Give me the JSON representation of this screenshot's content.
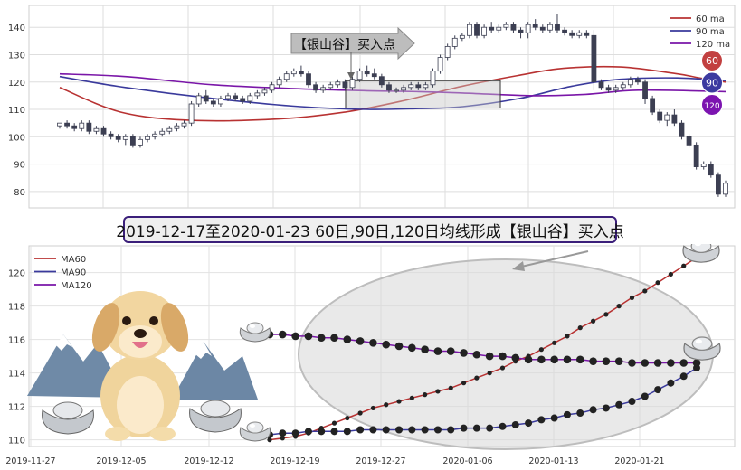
{
  "banner": "2019-12-17至2020-01-23 60日,90日,120日均线形成【银山谷】买入点",
  "colors": {
    "ma60": "#b83232",
    "ma90": "#3a3a9c",
    "ma120": "#7a16a8",
    "up": "#ffffff",
    "down": "#3c3f52"
  },
  "chart_data": [
    {
      "type": "candlestick",
      "title": "",
      "annotation": "【银山谷】买入点",
      "ylim": [
        74,
        148
      ],
      "y_ticks": [
        80,
        90,
        100,
        110,
        120,
        130,
        140
      ],
      "grid": true,
      "legend": {
        "position": "top-right",
        "entries": [
          "60 ma",
          "90 ma",
          "120 ma"
        ]
      },
      "badges": [
        "60",
        "90",
        "120"
      ],
      "candles": [
        [
          104,
          105,
          103,
          105
        ],
        [
          105,
          106,
          103,
          104
        ],
        [
          104,
          105,
          102,
          103
        ],
        [
          103,
          106,
          102,
          105
        ],
        [
          105,
          106,
          101,
          102
        ],
        [
          102,
          104,
          101,
          103
        ],
        [
          103,
          104,
          100,
          101
        ],
        [
          101,
          102,
          99,
          100
        ],
        [
          100,
          101,
          98,
          99
        ],
        [
          99,
          101,
          97,
          100
        ],
        [
          100,
          101,
          96,
          97
        ],
        [
          97,
          100,
          96,
          99
        ],
        [
          99,
          101,
          98,
          100
        ],
        [
          100,
          102,
          99,
          101
        ],
        [
          101,
          103,
          100,
          102
        ],
        [
          102,
          104,
          101,
          103
        ],
        [
          103,
          105,
          102,
          104
        ],
        [
          104,
          106,
          103,
          105
        ],
        [
          105,
          113,
          104,
          112
        ],
        [
          112,
          116,
          111,
          115
        ],
        [
          115,
          117,
          112,
          113
        ],
        [
          113,
          114,
          111,
          112
        ],
        [
          112,
          115,
          111,
          114
        ],
        [
          114,
          116,
          113,
          115
        ],
        [
          115,
          116,
          113,
          114
        ],
        [
          114,
          115,
          112,
          113
        ],
        [
          113,
          116,
          112,
          115
        ],
        [
          115,
          117,
          114,
          116
        ],
        [
          116,
          118,
          115,
          117
        ],
        [
          117,
          120,
          116,
          119
        ],
        [
          119,
          122,
          118,
          121
        ],
        [
          121,
          124,
          120,
          123
        ],
        [
          123,
          125,
          122,
          124
        ],
        [
          124,
          126,
          122,
          123
        ],
        [
          123,
          124,
          118,
          119
        ],
        [
          119,
          120,
          116,
          117
        ],
        [
          117,
          119,
          116,
          118
        ],
        [
          118,
          120,
          117,
          119
        ],
        [
          119,
          121,
          118,
          120
        ],
        [
          120,
          121,
          117,
          118
        ],
        [
          118,
          122,
          117,
          121
        ],
        [
          121,
          125,
          120,
          124
        ],
        [
          124,
          126,
          122,
          123
        ],
        [
          123,
          125,
          121,
          122
        ],
        [
          122,
          123,
          118,
          119
        ],
        [
          119,
          120,
          116,
          117
        ],
        [
          117,
          118,
          116,
          117
        ],
        [
          117,
          119,
          116,
          118
        ],
        [
          118,
          120,
          117,
          119
        ],
        [
          119,
          120,
          117,
          118
        ],
        [
          118,
          120,
          117,
          119
        ],
        [
          119,
          125,
          118,
          124
        ],
        [
          124,
          130,
          123,
          129
        ],
        [
          129,
          134,
          128,
          133
        ],
        [
          133,
          137,
          132,
          136
        ],
        [
          136,
          138,
          135,
          137
        ],
        [
          137,
          142,
          136,
          141
        ],
        [
          141,
          142,
          136,
          137
        ],
        [
          137,
          141,
          136,
          140
        ],
        [
          140,
          142,
          138,
          139
        ],
        [
          139,
          141,
          138,
          140
        ],
        [
          140,
          142,
          139,
          141
        ],
        [
          141,
          142,
          138,
          139
        ],
        [
          139,
          140,
          136,
          138
        ],
        [
          138,
          142,
          136,
          141
        ],
        [
          141,
          143,
          139,
          140
        ],
        [
          140,
          141,
          138,
          139
        ],
        [
          139,
          142,
          138,
          141
        ],
        [
          141,
          145,
          138,
          139
        ],
        [
          139,
          140,
          137,
          138
        ],
        [
          138,
          139,
          136,
          137
        ],
        [
          137,
          139,
          136,
          138
        ],
        [
          138,
          139,
          136,
          137
        ],
        [
          137,
          139,
          117,
          120
        ],
        [
          120,
          121,
          117,
          118
        ],
        [
          118,
          119,
          116,
          117
        ],
        [
          117,
          119,
          116,
          118
        ],
        [
          118,
          120,
          117,
          119
        ],
        [
          119,
          122,
          118,
          121
        ],
        [
          121,
          122,
          119,
          120
        ],
        [
          120,
          121,
          112,
          114
        ],
        [
          114,
          115,
          108,
          109
        ],
        [
          109,
          110,
          105,
          106
        ],
        [
          106,
          109,
          104,
          108
        ],
        [
          108,
          110,
          104,
          105
        ],
        [
          105,
          106,
          99,
          100
        ],
        [
          100,
          101,
          96,
          97
        ],
        [
          97,
          98,
          88,
          89
        ],
        [
          89,
          91,
          88,
          90
        ],
        [
          90,
          91,
          85,
          86
        ],
        [
          86,
          87,
          78,
          79
        ],
        [
          79,
          84,
          78,
          83
        ]
      ],
      "ma60_points": [
        [
          0,
          118
        ],
        [
          14,
          109
        ],
        [
          30,
          106
        ],
        [
          50,
          106.5
        ],
        [
          65,
          109
        ],
        [
          78,
          113
        ],
        [
          92,
          118.5
        ],
        [
          105,
          122.5
        ],
        [
          115,
          125
        ],
        [
          128,
          125.5
        ],
        [
          141,
          123
        ],
        [
          146,
          121.5
        ],
        [
          152,
          120
        ]
      ],
      "ma90_points": [
        [
          0,
          122
        ],
        [
          15,
          118
        ],
        [
          35,
          114
        ],
        [
          55,
          111
        ],
        [
          70,
          110
        ],
        [
          82,
          110.3
        ],
        [
          92,
          111
        ],
        [
          105,
          114
        ],
        [
          117,
          118.5
        ],
        [
          128,
          121
        ],
        [
          141,
          121.5
        ],
        [
          152,
          120.5
        ]
      ],
      "ma120_points": [
        [
          0,
          123
        ],
        [
          15,
          122
        ],
        [
          35,
          119
        ],
        [
          55,
          117.5
        ],
        [
          70,
          116.8
        ],
        [
          82,
          116.5
        ],
        [
          92,
          116
        ],
        [
          108,
          115
        ],
        [
          120,
          115.5
        ],
        [
          132,
          117
        ],
        [
          152,
          116.5
        ]
      ]
    },
    {
      "type": "line",
      "title": "",
      "x_ticks": [
        "2019-11-27",
        "2019-12-05",
        "2019-12-12",
        "2019-12-19",
        "2019-12-27",
        "2020-01-06",
        "2020-01-13",
        "2020-01-21"
      ],
      "y_ticks": [
        110,
        112,
        114,
        116,
        118,
        120
      ],
      "ylim": [
        109.6,
        121.6
      ],
      "legend": {
        "position": "top-left"
      },
      "series": [
        {
          "name": "MA60",
          "values": [
            110.0,
            110.1,
            110.2,
            110.4,
            110.7,
            111.0,
            111.3,
            111.6,
            111.9,
            112.1,
            112.3,
            112.5,
            112.7,
            112.9,
            113.1,
            113.4,
            113.7,
            114.0,
            114.3,
            114.7,
            115.0,
            115.4,
            115.8,
            116.2,
            116.7,
            117.1,
            117.5,
            118.0,
            118.5,
            118.9,
            119.4,
            119.9,
            120.4,
            120.9
          ]
        },
        {
          "name": "MA90",
          "values": [
            110.3,
            110.4,
            110.4,
            110.5,
            110.5,
            110.5,
            110.5,
            110.6,
            110.6,
            110.6,
            110.6,
            110.6,
            110.6,
            110.6,
            110.6,
            110.7,
            110.7,
            110.7,
            110.8,
            110.9,
            111.0,
            111.2,
            111.3,
            111.5,
            111.6,
            111.8,
            111.9,
            112.1,
            112.3,
            112.6,
            113.0,
            113.4,
            113.8,
            114.3
          ]
        },
        {
          "name": "MA120",
          "values": [
            116.3,
            116.3,
            116.2,
            116.2,
            116.1,
            116.1,
            116.0,
            115.9,
            115.8,
            115.7,
            115.6,
            115.5,
            115.4,
            115.3,
            115.3,
            115.2,
            115.1,
            115.0,
            115.0,
            114.9,
            114.8,
            114.8,
            114.8,
            114.8,
            114.8,
            114.7,
            114.7,
            114.7,
            114.6,
            114.6,
            114.6,
            114.6,
            114.6,
            114.6
          ]
        }
      ]
    }
  ]
}
